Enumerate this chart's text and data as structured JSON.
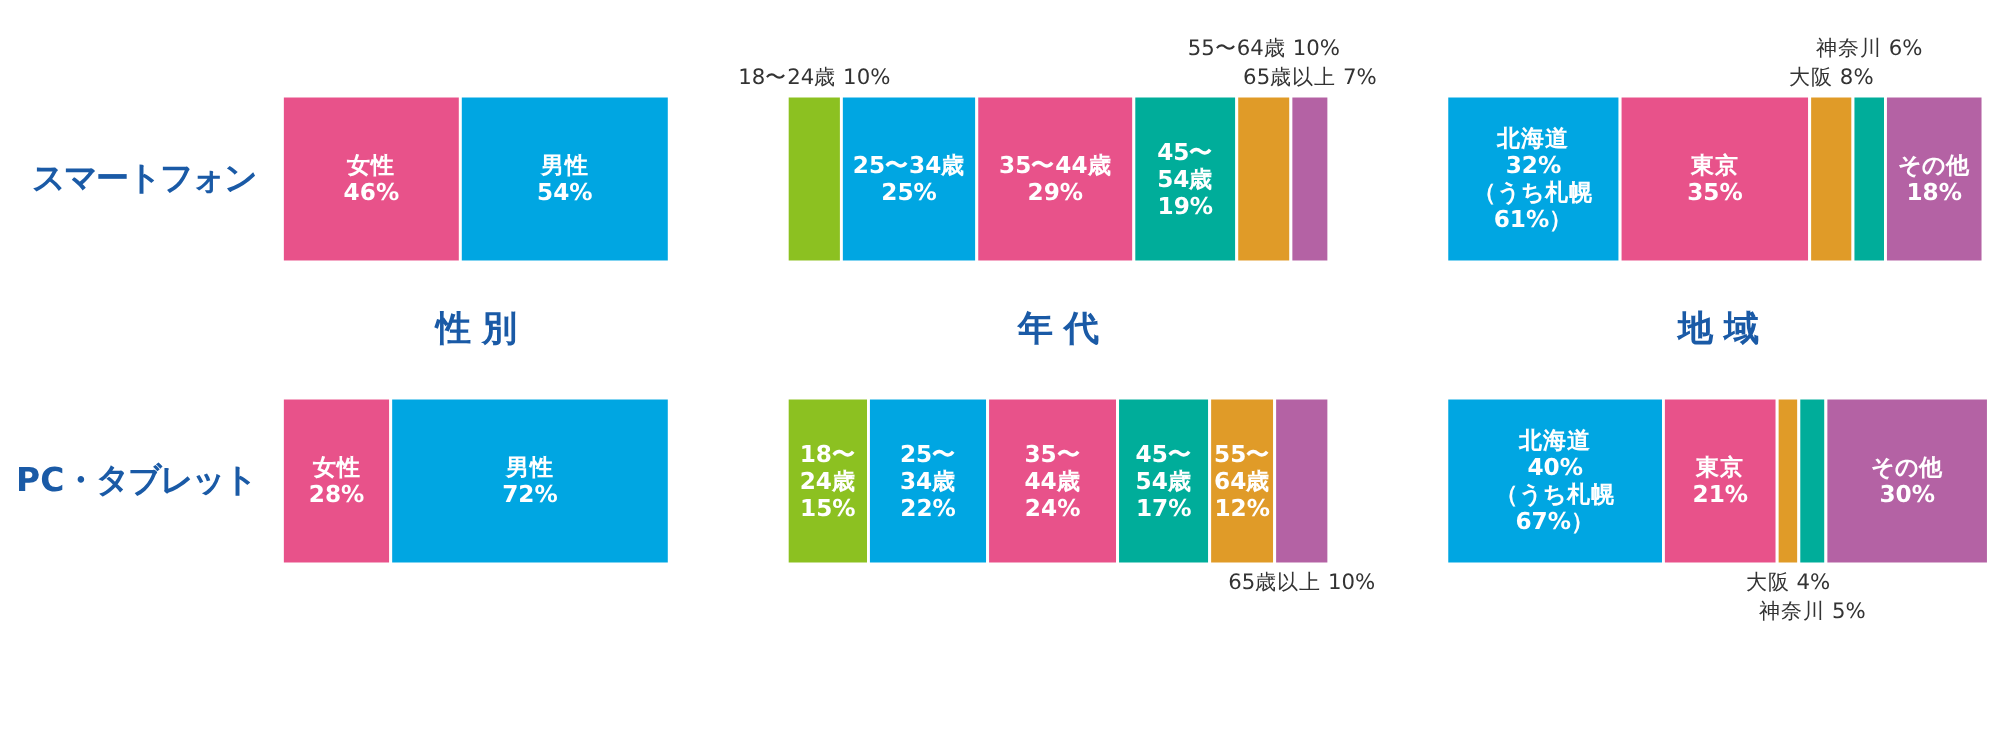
{
  "chart_data": [
    {
      "type": "bar",
      "orientation": "horizontal",
      "stacked": true,
      "title": "性 別",
      "categories": [
        "スマートフォン",
        "PC・タブレット"
      ],
      "xlim": [
        0,
        100
      ],
      "tick_labels": "y",
      "legend": false,
      "grid": false,
      "series": [
        {
          "name": "女性",
          "color": "#e8528a",
          "values": [
            46,
            28
          ],
          "value_labels": [
            "46%",
            "28%"
          ]
        },
        {
          "name": "男性",
          "color": "#00a6e2",
          "values": [
            54,
            72
          ],
          "value_labels": [
            "54%",
            "72%"
          ]
        }
      ]
    },
    {
      "type": "bar",
      "orientation": "horizontal",
      "stacked": true,
      "title": "年 代",
      "categories": [
        null,
        null
      ],
      "xlim": [
        0,
        100
      ],
      "tick_labels": false,
      "legend": false,
      "grid": false,
      "series": [
        {
          "name": "18〜24歳",
          "color": "#8cc121",
          "values": [
            10,
            15
          ],
          "value_labels": [
            "10%",
            "15%"
          ]
        },
        {
          "name": "25〜34歳",
          "color": "#00a6e2",
          "values": [
            25,
            22
          ],
          "value_labels": [
            "25%",
            "22%"
          ]
        },
        {
          "name": "35〜44歳",
          "color": "#e8528a",
          "values": [
            29,
            24
          ],
          "value_labels": [
            "29%",
            "24%"
          ]
        },
        {
          "name": "45〜54歳",
          "color": "#00ad9a",
          "values": [
            19,
            17
          ],
          "value_labels": [
            "19%",
            "17%"
          ]
        },
        {
          "name": "55〜64歳",
          "color": "#e09b28",
          "values": [
            10,
            12
          ],
          "value_labels": [
            "10%",
            "12%"
          ]
        },
        {
          "name": "65歳以上",
          "color": "#b462a4",
          "values": [
            7,
            10
          ],
          "value_labels": [
            "7%",
            "10%"
          ]
        }
      ]
    },
    {
      "type": "bar",
      "orientation": "horizontal",
      "stacked": true,
      "title": "地 域",
      "categories": [
        null,
        null
      ],
      "xlim": [
        0,
        100
      ],
      "tick_labels": false,
      "legend": false,
      "grid": false,
      "series": [
        {
          "name": "北海道",
          "color": "#00a6e2",
          "values": [
            32,
            40
          ],
          "value_labels": [
            "32%\n（うち札幌\n61%）",
            "40%\n（うち札幌\n67%）"
          ]
        },
        {
          "name": "東京",
          "color": "#e8528a",
          "values": [
            35,
            21
          ],
          "value_labels": [
            "35%",
            "21%"
          ]
        },
        {
          "name": "大阪",
          "color": "#e09b28",
          "values": [
            8,
            4
          ],
          "value_labels": [
            "8%",
            "4%"
          ]
        },
        {
          "name": "神奈川",
          "color": "#00ad9a",
          "values": [
            6,
            5
          ],
          "value_labels": [
            "6%",
            "5%"
          ]
        },
        {
          "name": "その他",
          "color": "#b462a4",
          "values": [
            18,
            30
          ],
          "value_labels": [
            "18%",
            "30%"
          ]
        }
      ]
    }
  ]
}
